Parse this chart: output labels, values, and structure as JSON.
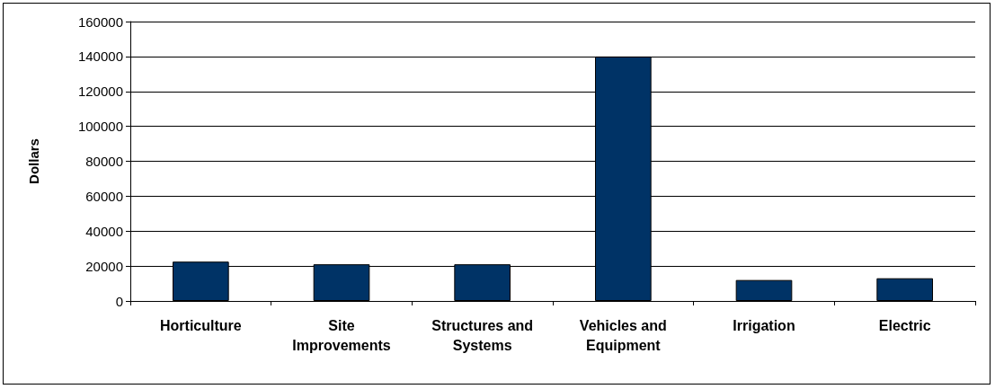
{
  "chart_data": {
    "type": "bar",
    "ylabel": "Dollars",
    "categories": [
      "Horticulture",
      "Site\nImprovements",
      "Structures and\nSystems",
      "Vehicles and\nEquipment",
      "Irrigation",
      "Electric"
    ],
    "values": [
      22500,
      21000,
      21000,
      140000,
      12000,
      13000
    ],
    "color": "#003366",
    "ylim": [
      0,
      160000
    ],
    "yticks": [
      0,
      20000,
      40000,
      60000,
      80000,
      100000,
      120000,
      140000,
      160000
    ],
    "grid": "y"
  }
}
